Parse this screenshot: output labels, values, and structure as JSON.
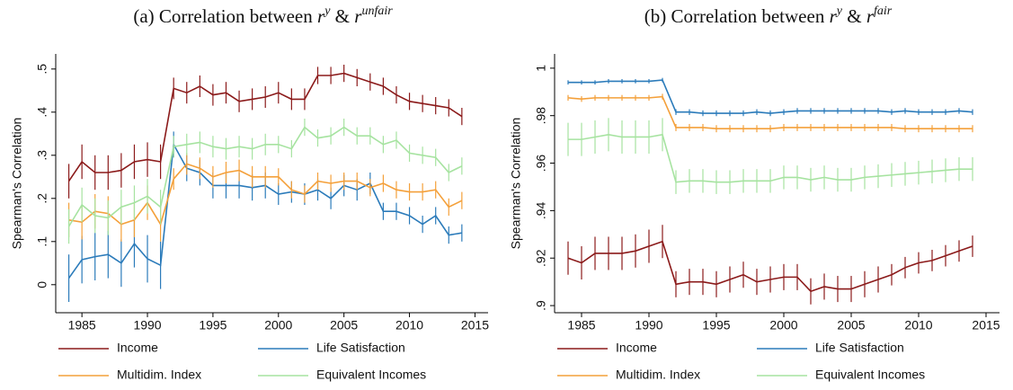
{
  "chart_data": [
    {
      "type": "line",
      "title": [
        {
          "text": "(a) Correlation between "
        },
        {
          "text": "r",
          "italic": true
        },
        {
          "text": "y",
          "italic": true,
          "sup": true
        },
        {
          "text": " & "
        },
        {
          "text": "r",
          "italic": true
        },
        {
          "text": "unfair",
          "italic": true,
          "sup": true
        }
      ],
      "ylabel": "Spearman's Correlation",
      "x": [
        1984,
        1985,
        1986,
        1987,
        1988,
        1989,
        1990,
        1991,
        1992,
        1993,
        1994,
        1995,
        1996,
        1997,
        1998,
        1999,
        2000,
        2001,
        2002,
        2003,
        2004,
        2005,
        2006,
        2007,
        2008,
        2009,
        2010,
        2011,
        2012,
        2013,
        2014
      ],
      "xlim": [
        1983,
        2016
      ],
      "xticks": [
        1985,
        1990,
        1995,
        2000,
        2005,
        2010,
        2015
      ],
      "ylim": [
        -0.065,
        0.535
      ],
      "yticks": [
        0,
        {
          "value": 0.1,
          "label": ".1"
        },
        {
          "value": 0.2,
          "label": ".2"
        },
        {
          "value": 0.3,
          "label": ".3"
        },
        {
          "value": 0.4,
          "label": ".4"
        },
        {
          "value": 0.5,
          "label": ".5"
        }
      ],
      "series": [
        {
          "name": "Income",
          "color": "#8b1a1a",
          "values": [
            0.24,
            0.285,
            0.26,
            0.26,
            0.265,
            0.285,
            0.29,
            0.285,
            0.455,
            0.445,
            0.46,
            0.44,
            0.445,
            0.425,
            0.43,
            0.435,
            0.445,
            0.43,
            0.43,
            0.485,
            0.485,
            0.49,
            0.48,
            0.47,
            0.46,
            0.44,
            0.425,
            0.42,
            0.415,
            0.41,
            0.39
          ],
          "errors": [
            0.04,
            0.04,
            0.04,
            0.04,
            0.04,
            0.04,
            0.04,
            0.04,
            0.025,
            0.025,
            0.025,
            0.025,
            0.025,
            0.025,
            0.025,
            0.025,
            0.025,
            0.025,
            0.025,
            0.02,
            0.02,
            0.02,
            0.02,
            0.02,
            0.02,
            0.02,
            0.02,
            0.02,
            0.02,
            0.02,
            0.02
          ]
        },
        {
          "name": "Life Satisfaction",
          "color": "#2b7bba",
          "values": [
            0.015,
            0.058,
            0.065,
            0.07,
            0.05,
            0.095,
            0.06,
            0.045,
            0.325,
            0.27,
            0.26,
            0.23,
            0.23,
            0.23,
            0.225,
            0.23,
            0.21,
            0.215,
            0.21,
            0.22,
            0.2,
            0.23,
            0.22,
            0.235,
            0.17,
            0.17,
            0.16,
            0.14,
            0.16,
            0.115,
            0.12
          ],
          "errors": [
            0.055,
            0.055,
            0.055,
            0.055,
            0.055,
            0.055,
            0.055,
            0.055,
            0.03,
            0.03,
            0.03,
            0.03,
            0.03,
            0.03,
            0.03,
            0.03,
            0.025,
            0.025,
            0.025,
            0.025,
            0.025,
            0.025,
            0.025,
            0.025,
            0.02,
            0.02,
            0.02,
            0.02,
            0.02,
            0.02,
            0.02
          ]
        },
        {
          "name": "Multidim. Index",
          "color": "#f4a03a",
          "values": [
            0.15,
            0.145,
            0.17,
            0.165,
            0.14,
            0.15,
            0.19,
            0.14,
            0.245,
            0.28,
            0.27,
            0.25,
            0.26,
            0.265,
            0.25,
            0.25,
            0.25,
            0.22,
            0.21,
            0.24,
            0.235,
            0.24,
            0.24,
            0.225,
            0.235,
            0.22,
            0.215,
            0.215,
            0.22,
            0.18,
            0.195
          ],
          "errors": [
            0.04,
            0.04,
            0.04,
            0.04,
            0.04,
            0.04,
            0.04,
            0.04,
            0.025,
            0.025,
            0.025,
            0.025,
            0.025,
            0.025,
            0.025,
            0.025,
            0.02,
            0.02,
            0.02,
            0.02,
            0.02,
            0.02,
            0.02,
            0.02,
            0.02,
            0.02,
            0.02,
            0.02,
            0.02,
            0.02,
            0.02
          ]
        },
        {
          "name": "Equivalent Incomes",
          "color": "#a6e3a0",
          "values": [
            0.135,
            0.185,
            0.16,
            0.155,
            0.18,
            0.19,
            0.205,
            0.18,
            0.32,
            0.325,
            0.33,
            0.32,
            0.315,
            0.32,
            0.315,
            0.325,
            0.325,
            0.315,
            0.365,
            0.34,
            0.345,
            0.365,
            0.345,
            0.345,
            0.325,
            0.335,
            0.305,
            0.3,
            0.295,
            0.26,
            0.275
          ],
          "errors": [
            0.04,
            0.04,
            0.04,
            0.04,
            0.04,
            0.04,
            0.04,
            0.04,
            0.025,
            0.025,
            0.025,
            0.025,
            0.025,
            0.025,
            0.025,
            0.025,
            0.02,
            0.02,
            0.02,
            0.02,
            0.02,
            0.02,
            0.02,
            0.02,
            0.02,
            0.02,
            0.02,
            0.02,
            0.02,
            0.02,
            0.02
          ]
        }
      ]
    },
    {
      "type": "line",
      "title": [
        {
          "text": "(b) Correlation between "
        },
        {
          "text": "r",
          "italic": true
        },
        {
          "text": "y",
          "italic": true,
          "sup": true
        },
        {
          "text": " & "
        },
        {
          "text": "r",
          "italic": true
        },
        {
          "text": "fair",
          "italic": true,
          "sup": true
        }
      ],
      "ylabel": "Spearman's Correlation",
      "x": [
        1984,
        1985,
        1986,
        1987,
        1988,
        1989,
        1990,
        1991,
        1992,
        1993,
        1994,
        1995,
        1996,
        1997,
        1998,
        1999,
        2000,
        2001,
        2002,
        2003,
        2004,
        2005,
        2006,
        2007,
        2008,
        2009,
        2010,
        2011,
        2012,
        2013,
        2014
      ],
      "xlim": [
        1983,
        2016
      ],
      "xticks": [
        1985,
        1990,
        1995,
        2000,
        2005,
        2010,
        2015
      ],
      "ylim": [
        0.897,
        1.006
      ],
      "yticks": [
        {
          "value": 0.9,
          "label": ".9"
        },
        {
          "value": 0.92,
          "label": ".92"
        },
        {
          "value": 0.94,
          "label": ".94"
        },
        {
          "value": 0.96,
          "label": ".96"
        },
        {
          "value": 0.98,
          "label": ".98"
        },
        1
      ],
      "series": [
        {
          "name": "Income",
          "color": "#8b1a1a",
          "values": [
            0.92,
            0.918,
            0.922,
            0.922,
            0.922,
            0.923,
            0.925,
            0.927,
            0.909,
            0.91,
            0.91,
            0.909,
            0.911,
            0.913,
            0.91,
            0.911,
            0.912,
            0.912,
            0.906,
            0.908,
            0.907,
            0.907,
            0.909,
            0.911,
            0.913,
            0.916,
            0.918,
            0.919,
            0.921,
            0.923,
            0.925
          ],
          "errors": [
            0.007,
            0.007,
            0.007,
            0.007,
            0.007,
            0.007,
            0.007,
            0.007,
            0.0055,
            0.0055,
            0.0055,
            0.0055,
            0.0055,
            0.0055,
            0.0055,
            0.0055,
            0.0055,
            0.0055,
            0.0055,
            0.0055,
            0.0055,
            0.0055,
            0.0055,
            0.0055,
            0.0045,
            0.0045,
            0.0045,
            0.0045,
            0.0045,
            0.0045,
            0.0045
          ]
        },
        {
          "name": "Life Satisfaction",
          "color": "#2b7bba",
          "values": [
            0.994,
            0.994,
            0.994,
            0.9945,
            0.9945,
            0.9945,
            0.9945,
            0.995,
            0.9815,
            0.9815,
            0.981,
            0.981,
            0.981,
            0.981,
            0.9815,
            0.981,
            0.9815,
            0.982,
            0.982,
            0.982,
            0.982,
            0.982,
            0.982,
            0.982,
            0.9815,
            0.982,
            0.9815,
            0.9815,
            0.9815,
            0.982,
            0.9815
          ],
          "errors": [
            0.0009,
            0.0009,
            0.0009,
            0.0009,
            0.0009,
            0.0009,
            0.0009,
            0.0009,
            0.0012,
            0.0012,
            0.0012,
            0.0012,
            0.0012,
            0.0012,
            0.0012,
            0.0012,
            0.0012,
            0.0012,
            0.0012,
            0.0012,
            0.0012,
            0.0012,
            0.0012,
            0.0012,
            0.0012,
            0.0012,
            0.0012,
            0.0012,
            0.0012,
            0.0012,
            0.0012
          ]
        },
        {
          "name": "Multidim. Index",
          "color": "#f4a03a",
          "values": [
            0.9875,
            0.987,
            0.9875,
            0.9875,
            0.9875,
            0.9875,
            0.9875,
            0.988,
            0.975,
            0.975,
            0.975,
            0.9745,
            0.9745,
            0.9745,
            0.9745,
            0.9745,
            0.975,
            0.975,
            0.975,
            0.975,
            0.975,
            0.975,
            0.975,
            0.975,
            0.975,
            0.9745,
            0.9745,
            0.9745,
            0.9745,
            0.9745,
            0.9745
          ],
          "errors": [
            0.0012,
            0.0012,
            0.0012,
            0.0012,
            0.0012,
            0.0012,
            0.0012,
            0.0012,
            0.0015,
            0.0015,
            0.0015,
            0.0015,
            0.0015,
            0.0015,
            0.0015,
            0.0015,
            0.0015,
            0.0015,
            0.0015,
            0.0015,
            0.0015,
            0.0015,
            0.0015,
            0.0015,
            0.0015,
            0.0015,
            0.0015,
            0.0015,
            0.0015,
            0.0015,
            0.0015
          ]
        },
        {
          "name": "Equivalent Incomes",
          "color": "#a6e3a0",
          "values": [
            0.97,
            0.97,
            0.971,
            0.972,
            0.971,
            0.971,
            0.971,
            0.972,
            0.952,
            0.9525,
            0.9525,
            0.952,
            0.952,
            0.9525,
            0.9525,
            0.9525,
            0.954,
            0.954,
            0.953,
            0.954,
            0.953,
            0.953,
            0.954,
            0.9545,
            0.955,
            0.9555,
            0.956,
            0.9565,
            0.957,
            0.9575,
            0.9575
          ],
          "errors": [
            0.007,
            0.007,
            0.007,
            0.007,
            0.007,
            0.007,
            0.007,
            0.007,
            0.005,
            0.005,
            0.005,
            0.005,
            0.005,
            0.005,
            0.005,
            0.005,
            0.005,
            0.005,
            0.005,
            0.005,
            0.005,
            0.005,
            0.005,
            0.005,
            0.005,
            0.005,
            0.005,
            0.005,
            0.005,
            0.005,
            0.005
          ]
        }
      ]
    }
  ]
}
